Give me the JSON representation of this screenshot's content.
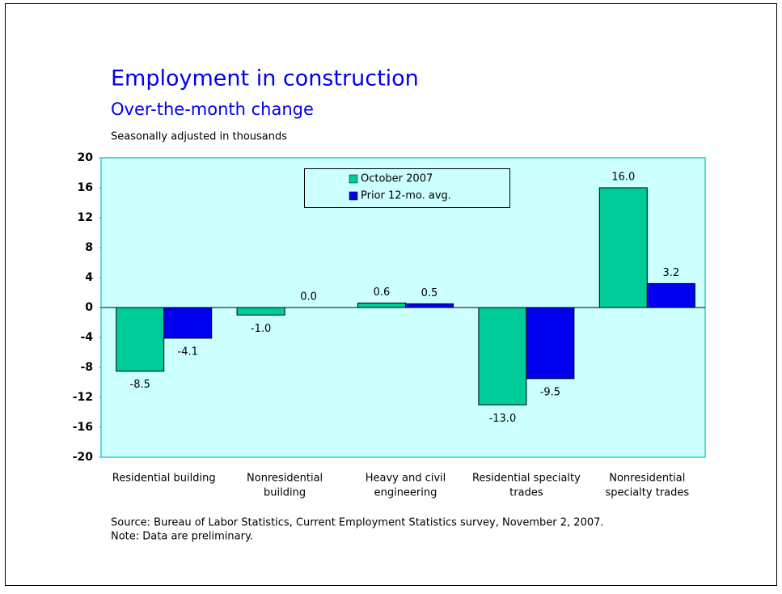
{
  "chart_data": {
    "type": "bar",
    "title": "Employment in construction",
    "subtitle": "Over-the-month change",
    "y_label": "Seasonally adjusted in thousands",
    "categories": [
      [
        "Residential building"
      ],
      [
        "Nonresidential",
        "building"
      ],
      [
        "Heavy and civil",
        "engineering"
      ],
      [
        "Residential specialty",
        "trades"
      ],
      [
        "Nonresidential",
        "specialty trades"
      ]
    ],
    "series": [
      {
        "name": "October 2007",
        "color": "#00cc99",
        "values": [
          -8.5,
          -1.0,
          0.6,
          -13.0,
          16.0
        ],
        "value_labels": [
          "-8.5",
          "-1.0",
          "0.6",
          "-13.0",
          "16.0"
        ]
      },
      {
        "name": "Prior 12-mo. avg.",
        "color": "#0000ee",
        "values": [
          -4.1,
          0.0,
          0.5,
          -9.5,
          3.2
        ],
        "value_labels": [
          "-4.1",
          "0.0",
          "0.5",
          "-9.5",
          "3.2"
        ]
      }
    ],
    "ylim": [
      -20,
      20
    ],
    "yticks": [
      20,
      16,
      12,
      8,
      4,
      0,
      -4,
      -8,
      -12,
      -16,
      -20
    ],
    "grid": false,
    "legend": "top",
    "notes": [
      "Source:  Bureau of Labor Statistics, Current Employment Statistics survey, November 2, 2007.",
      "Note:  Data are preliminary."
    ]
  }
}
